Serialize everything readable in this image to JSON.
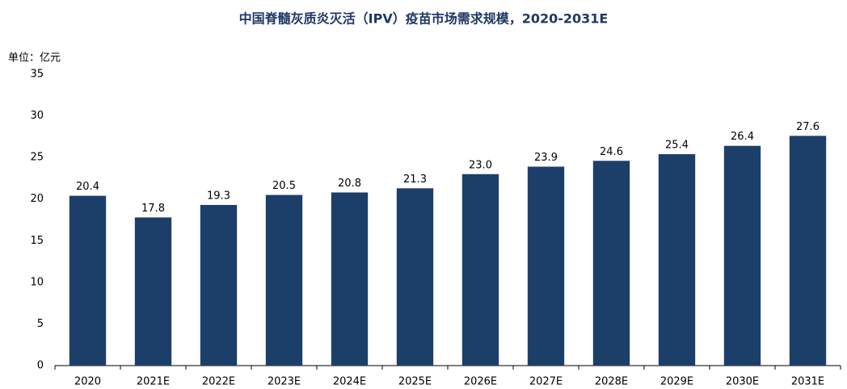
{
  "chart_data": {
    "type": "bar",
    "title": "中国脊髓灰质炎灭活（IPV）疫苗市场需求规模，2020-2031E",
    "y_label": "单位：亿元",
    "categories": [
      "2020",
      "2021E",
      "2022E",
      "2023E",
      "2024E",
      "2025E",
      "2026E",
      "2027E",
      "2028E",
      "2029E",
      "2030E",
      "2031E"
    ],
    "values": [
      20.4,
      17.8,
      19.3,
      20.5,
      20.8,
      21.3,
      23,
      23.9,
      24.6,
      25.4,
      26.4,
      27.6
    ],
    "value_labels": [
      "20.4",
      "17.8",
      "19.3",
      "20.5",
      "20.8",
      "21.3",
      "23.0",
      "23.9",
      "24.6",
      "25.4",
      "26.4",
      "27.6"
    ],
    "color": "#1c3f6a",
    "ylim": [
      0,
      35
    ],
    "yticks": [
      0,
      5,
      10,
      15,
      20,
      25,
      30,
      35
    ],
    "grid": false
  }
}
